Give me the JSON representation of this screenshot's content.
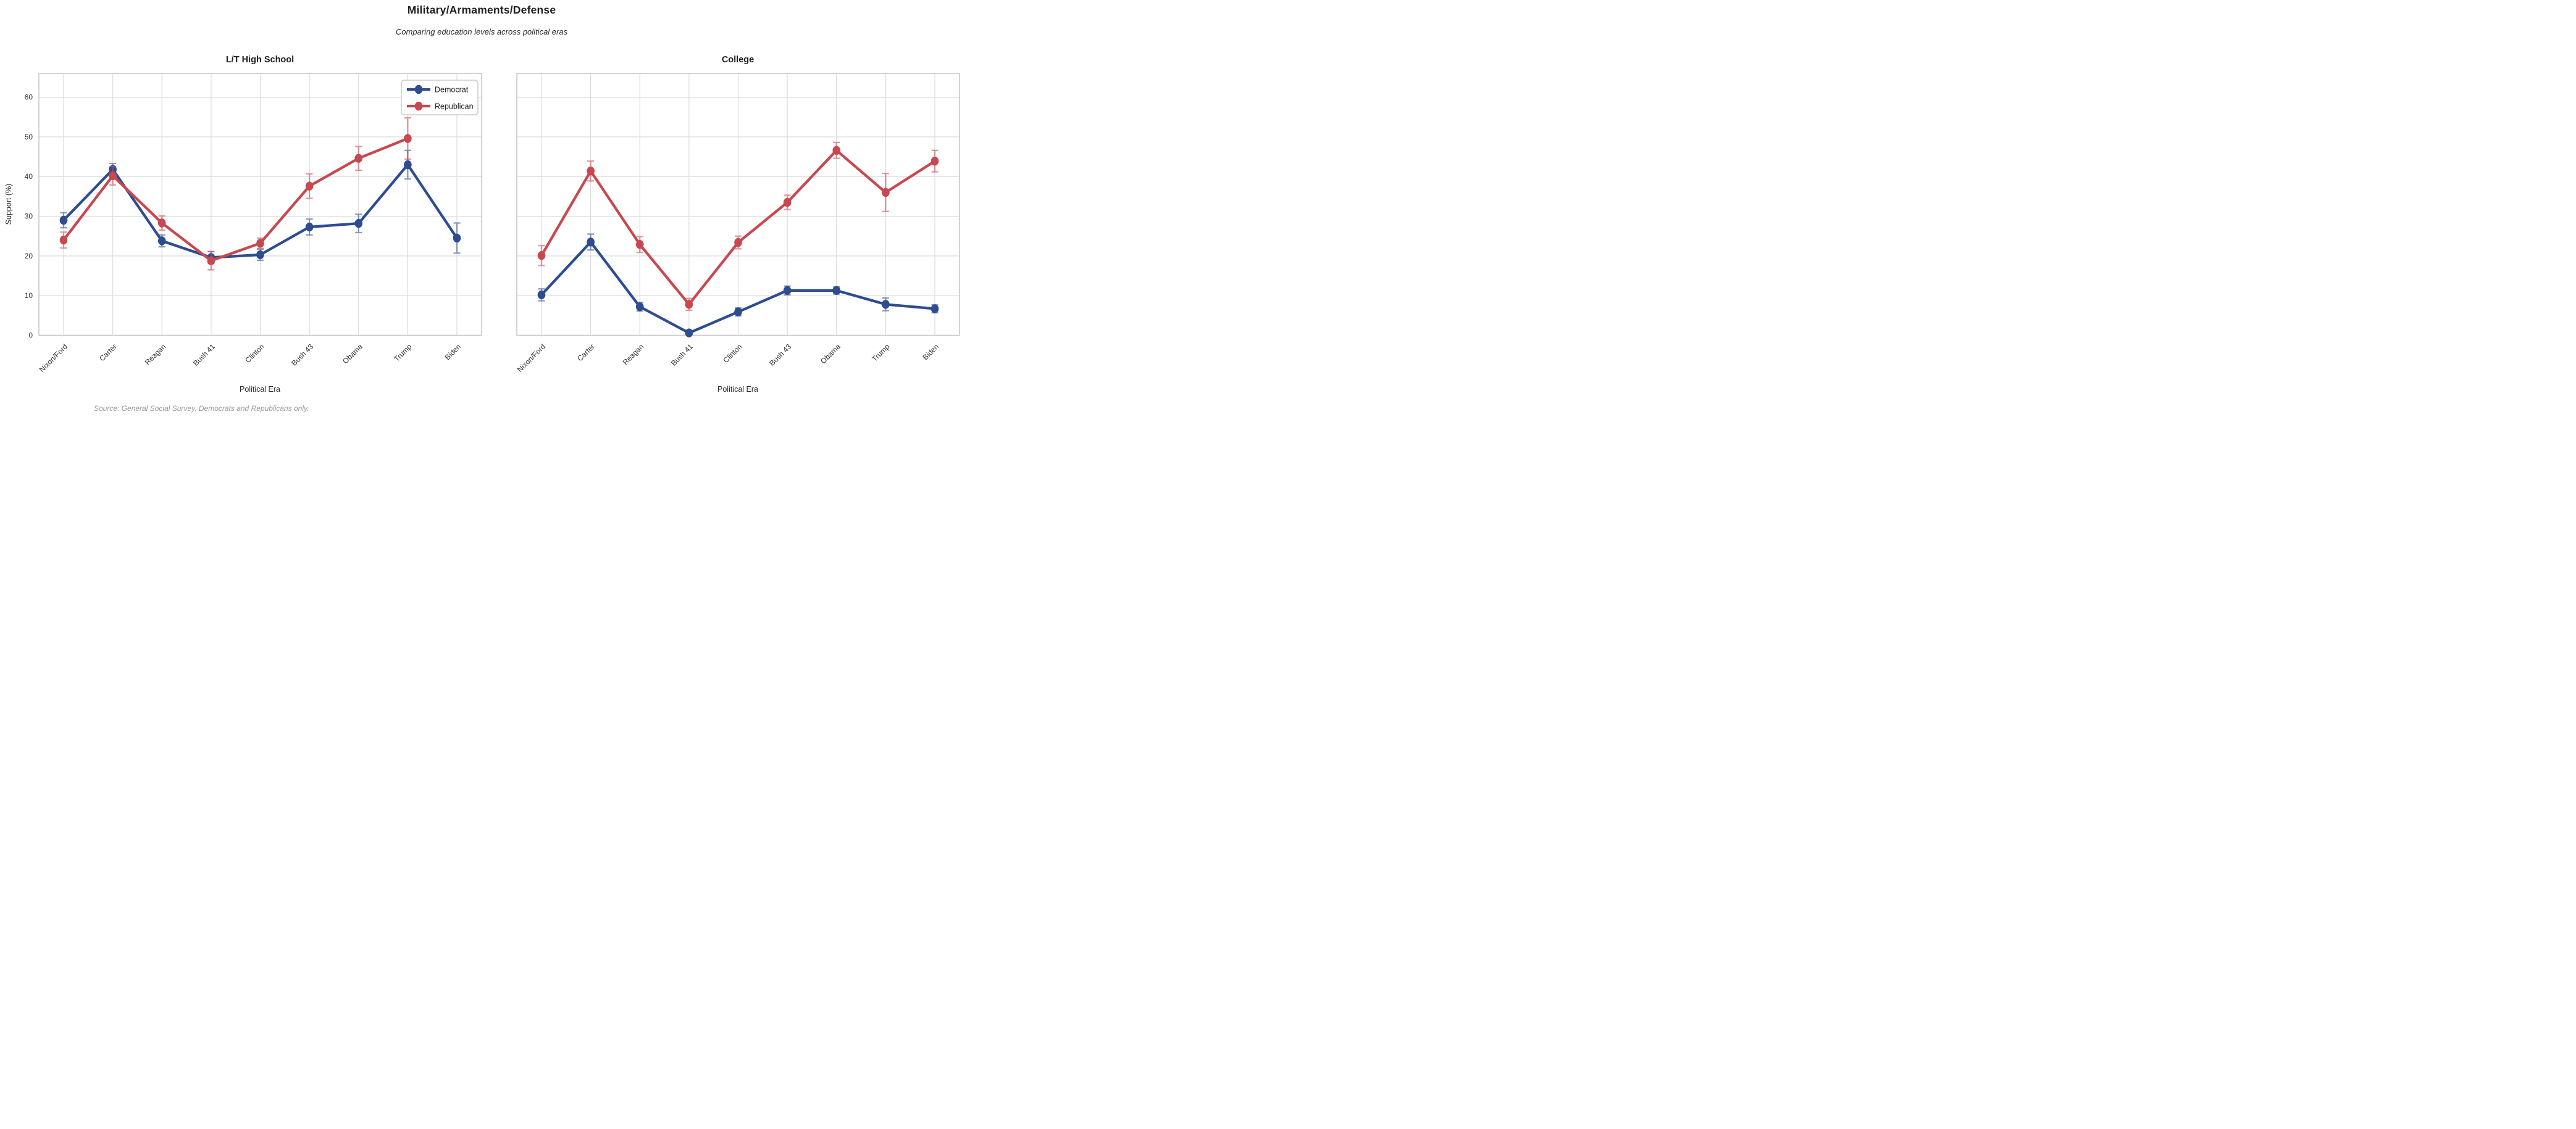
{
  "header": {
    "title": "Military/Armaments/Defense",
    "subtitle": "Comparing education levels across political eras"
  },
  "source_note": "Source: General Social Survey. Democrats and Republicans only.",
  "legend": {
    "entries": [
      "Democrat",
      "Republican"
    ],
    "position": "upper right of left subplot"
  },
  "colors": {
    "democrat": "#2d4d90",
    "republican": "#c8484f",
    "grid": "#dcdcdc",
    "spine": "#c8c8c8",
    "title_text": "#1f1f1f",
    "tick_text": "#333333",
    "muted_text": "#9a9a9a",
    "legend_border": "#cccccc",
    "background": "#ffffff"
  },
  "chart_data": [
    {
      "type": "line",
      "title": "L/T High School",
      "xlabel": "Political Era",
      "ylabel": "Support (%)",
      "ylim": [
        0,
        66
      ],
      "yticks": [
        0,
        10,
        20,
        30,
        40,
        50,
        60
      ],
      "grid": true,
      "legend_position": "upper right",
      "categories": [
        "Nixon/Ford",
        "Carter",
        "Reagan",
        "Bush 41",
        "Clinton",
        "Bush 43",
        "Obama",
        "Trump",
        "Biden"
      ],
      "series": [
        {
          "name": "Democrat",
          "color_key": "democrat",
          "values": [
            29.0,
            41.8,
            23.8,
            19.6,
            20.3,
            27.3,
            28.2,
            43.0,
            24.5
          ],
          "errors": [
            1.9,
            1.5,
            1.5,
            1.5,
            1.4,
            2.0,
            2.3,
            3.6,
            3.8
          ]
        },
        {
          "name": "Republican",
          "color_key": "republican",
          "values": [
            24.0,
            40.2,
            28.3,
            18.8,
            23.2,
            37.6,
            44.6,
            49.6,
            null
          ],
          "errors": [
            2.0,
            2.3,
            1.8,
            2.3,
            1.3,
            3.1,
            3.0,
            5.2,
            null
          ]
        }
      ]
    },
    {
      "type": "line",
      "title": "College",
      "xlabel": "Political Era",
      "ylabel": "Support (%)",
      "ylim": [
        0,
        66
      ],
      "yticks": [
        0,
        10,
        20,
        30,
        40,
        50,
        60
      ],
      "grid": true,
      "legend_position": null,
      "categories": [
        "Nixon/Ford",
        "Carter",
        "Reagan",
        "Bush 41",
        "Clinton",
        "Bush 43",
        "Obama",
        "Trump",
        "Biden"
      ],
      "series": [
        {
          "name": "Democrat",
          "color_key": "democrat",
          "values": [
            10.2,
            23.5,
            7.2,
            0.6,
            5.9,
            11.3,
            11.3,
            7.8,
            6.7
          ],
          "errors": [
            1.5,
            2.0,
            1.1,
            0.4,
            1.0,
            1.1,
            0.9,
            1.6,
            1.0
          ]
        },
        {
          "name": "Republican",
          "color_key": "republican",
          "values": [
            20.1,
            41.4,
            22.9,
            7.8,
            23.4,
            33.5,
            46.6,
            36.0,
            43.9
          ],
          "errors": [
            2.5,
            2.5,
            2.0,
            1.5,
            1.6,
            1.8,
            2.0,
            4.8,
            2.7
          ]
        }
      ]
    }
  ]
}
